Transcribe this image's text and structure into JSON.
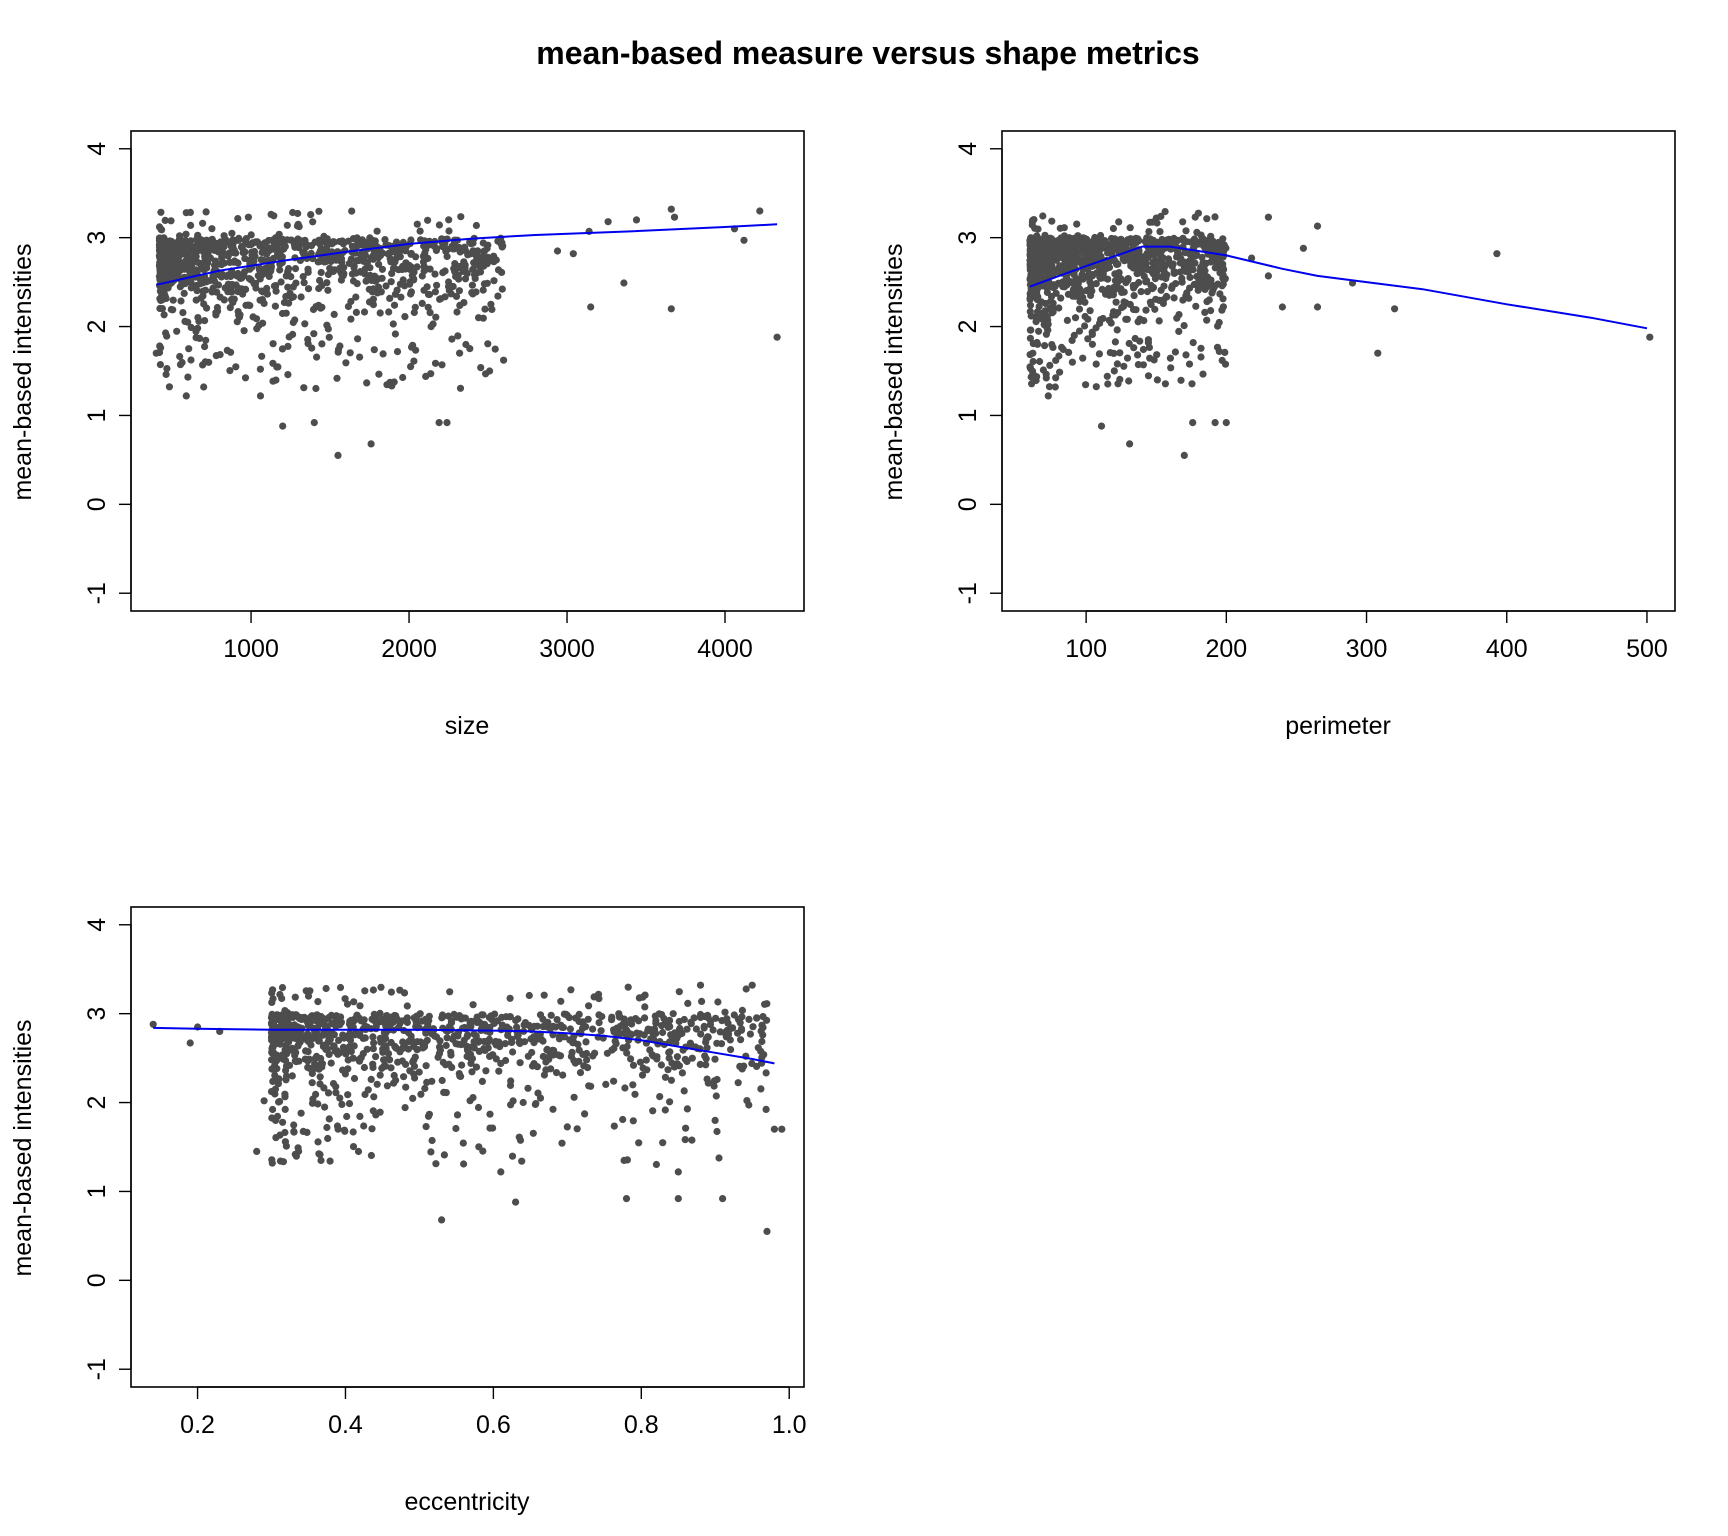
{
  "figure": {
    "title": "mean-based measure versus shape metrics",
    "colors": {
      "points": "#4d4d4d",
      "smooth_line": "#0000ee",
      "frame": "#000000"
    }
  },
  "chart_data": [
    {
      "type": "scatter",
      "xlabel": "size",
      "ylabel": "mean-based intensities",
      "xlim": [
        240,
        4500
      ],
      "ylim": [
        -1.2,
        4.2
      ],
      "x_ticks": [
        "1000",
        "2000",
        "3000",
        "4000"
      ],
      "y_ticks": [
        "-1",
        "0",
        "1",
        "2",
        "3",
        "4"
      ],
      "grid": false,
      "smooth_curve": {
        "x": [
          400,
          800,
          1200,
          1600,
          2000,
          2400,
          2800,
          3400,
          4000,
          4330
        ],
        "y": [
          2.47,
          2.63,
          2.74,
          2.84,
          2.93,
          2.99,
          3.03,
          3.07,
          3.12,
          3.15
        ]
      },
      "sample_points": [
        [
          4330,
          1.88
        ],
        [
          4220,
          3.3
        ],
        [
          4120,
          2.97
        ],
        [
          4060,
          3.1
        ],
        [
          3680,
          3.23
        ],
        [
          3660,
          3.32
        ],
        [
          3660,
          2.2
        ],
        [
          3440,
          3.2
        ],
        [
          3360,
          2.49
        ],
        [
          3260,
          3.18
        ],
        [
          3150,
          2.22
        ],
        [
          3140,
          3.07
        ],
        [
          3040,
          2.82
        ],
        [
          2940,
          2.85
        ],
        [
          2510,
          1.5
        ],
        [
          2440,
          2.1
        ],
        [
          2320,
          1.7
        ],
        [
          2240,
          0.92
        ],
        [
          2190,
          0.92
        ],
        [
          2010,
          1.55
        ],
        [
          1760,
          0.68
        ],
        [
          1550,
          0.55
        ],
        [
          1400,
          0.92
        ],
        [
          1200,
          0.88
        ],
        [
          590,
          1.22
        ],
        [
          400,
          1.7
        ],
        [
          700,
          1.32
        ],
        [
          1060,
          1.22
        ]
      ],
      "dense_region": {
        "x_range": [
          420,
          2600
        ],
        "y_range": [
          2.2,
          3.3
        ],
        "spread_y_range": [
          1.3,
          3.3
        ]
      }
    },
    {
      "type": "scatter",
      "xlabel": "perimeter",
      "ylabel": "mean-based intensities",
      "xlim": [
        40,
        520
      ],
      "ylim": [
        -1.2,
        4.2
      ],
      "x_ticks": [
        "100",
        "200",
        "300",
        "400",
        "500"
      ],
      "y_ticks": [
        "-1",
        "0",
        "1",
        "2",
        "3",
        "4"
      ],
      "grid": false,
      "smooth_curve": {
        "x": [
          60,
          100,
          140,
          160,
          200,
          240,
          265,
          300,
          340,
          400,
          460,
          500
        ],
        "y": [
          2.45,
          2.68,
          2.9,
          2.9,
          2.8,
          2.65,
          2.57,
          2.5,
          2.42,
          2.25,
          2.1,
          1.98
        ]
      },
      "sample_points": [
        [
          502,
          1.88
        ],
        [
          393,
          2.82
        ],
        [
          320,
          2.2
        ],
        [
          308,
          1.7
        ],
        [
          290,
          2.49
        ],
        [
          265,
          3.13
        ],
        [
          265,
          2.22
        ],
        [
          255,
          2.88
        ],
        [
          240,
          2.22
        ],
        [
          230,
          3.23
        ],
        [
          230,
          2.57
        ],
        [
          218,
          2.77
        ],
        [
          200,
          0.92
        ],
        [
          192,
          0.92
        ],
        [
          176,
          0.92
        ],
        [
          170,
          0.55
        ],
        [
          131,
          0.68
        ],
        [
          111,
          0.88
        ],
        [
          73,
          1.22
        ],
        [
          62,
          1.7
        ],
        [
          78,
          1.32
        ]
      ],
      "dense_region": {
        "x_range": [
          60,
          200
        ],
        "y_range": [
          2.2,
          3.3
        ],
        "spread_y_range": [
          1.3,
          3.3
        ]
      }
    },
    {
      "type": "scatter",
      "xlabel": "eccentricity",
      "ylabel": "mean-based intensities",
      "xlim": [
        0.11,
        1.02
      ],
      "ylim": [
        -1.2,
        4.2
      ],
      "x_ticks": [
        "0.2",
        "0.4",
        "0.6",
        "0.8",
        "1.0"
      ],
      "y_ticks": [
        "-1",
        "0",
        "1",
        "2",
        "3",
        "4"
      ],
      "grid": false,
      "smooth_curve": {
        "x": [
          0.14,
          0.2,
          0.3,
          0.4,
          0.5,
          0.6,
          0.65,
          0.7,
          0.75,
          0.8,
          0.85,
          0.9,
          0.95,
          0.98
        ],
        "y": [
          2.84,
          2.83,
          2.82,
          2.82,
          2.82,
          2.81,
          2.8,
          2.78,
          2.75,
          2.7,
          2.63,
          2.56,
          2.49,
          2.44
        ]
      },
      "sample_points": [
        [
          0.14,
          2.88
        ],
        [
          0.2,
          2.85
        ],
        [
          0.19,
          2.67
        ],
        [
          0.23,
          2.8
        ],
        [
          0.28,
          1.45
        ],
        [
          0.29,
          2.02
        ],
        [
          0.34,
          1.88
        ],
        [
          0.39,
          1.7
        ],
        [
          0.53,
          0.68
        ],
        [
          0.63,
          0.88
        ],
        [
          0.78,
          0.92
        ],
        [
          0.85,
          0.92
        ],
        [
          0.91,
          0.92
        ],
        [
          0.97,
          0.55
        ],
        [
          0.61,
          1.22
        ],
        [
          0.85,
          1.22
        ],
        [
          0.98,
          1.7
        ],
        [
          0.99,
          1.7
        ],
        [
          0.95,
          3.32
        ],
        [
          0.88,
          3.32
        ]
      ],
      "dense_region": {
        "x_range": [
          0.3,
          0.97
        ],
        "y_range": [
          2.2,
          3.3
        ],
        "spread_y_range": [
          1.3,
          3.3
        ]
      }
    }
  ]
}
